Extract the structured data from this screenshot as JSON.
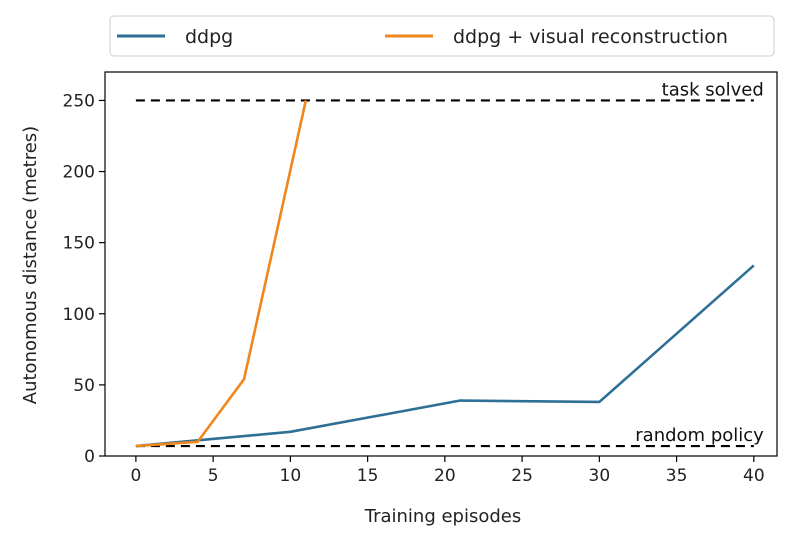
{
  "chart_data": {
    "type": "line",
    "xlabel": "Training episodes",
    "ylabel": "Autonomous distance (metres)",
    "xlim": [
      -2,
      41.5
    ],
    "ylim": [
      0,
      270
    ],
    "xticks": [
      0,
      5,
      10,
      15,
      20,
      25,
      30,
      35,
      40
    ],
    "yticks": [
      0,
      50,
      100,
      150,
      200,
      250
    ],
    "grid": false,
    "legend_position": "top",
    "series": [
      {
        "name": "ddpg",
        "color": "#2e6f95",
        "x": [
          0,
          4,
          10,
          21,
          30,
          40
        ],
        "y": [
          7,
          11,
          17,
          39,
          38,
          134
        ]
      },
      {
        "name": "ddpg + visual reconstruction",
        "color": "#f0861c",
        "x": [
          0,
          4,
          7,
          11
        ],
        "y": [
          7,
          10,
          54,
          250
        ]
      }
    ],
    "reference_lines": [
      {
        "label": "task solved",
        "y": 250,
        "x_range": [
          0,
          40
        ],
        "style": "dashed",
        "color": "#000000"
      },
      {
        "label": "random policy",
        "y": 7,
        "x_range": [
          0,
          40
        ],
        "style": "dashed",
        "color": "#000000"
      }
    ]
  }
}
